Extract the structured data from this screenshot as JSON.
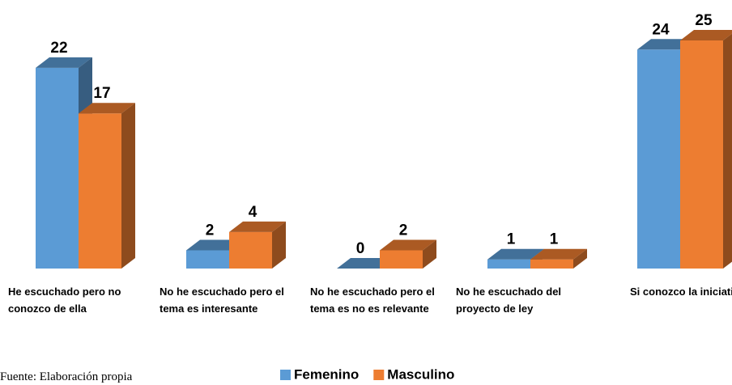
{
  "chart_data": {
    "type": "bar3d",
    "categories": [
      "He escuchado pero no conozco de ella",
      "No he escuchado pero el tema es interesante",
      "No he escuchado pero el tema es no es relevante",
      "No he escuchado del proyecto de ley",
      "Si conozco la iniciativa"
    ],
    "series": [
      {
        "name": "Femenino",
        "color": "#5b9bd5",
        "values": [
          22,
          2,
          0,
          1,
          24
        ]
      },
      {
        "name": "Masculino",
        "color": "#ed7d31",
        "values": [
          17,
          4,
          2,
          1,
          25
        ]
      }
    ],
    "legend": "bottom",
    "note": "Fuente: Elaboración propia"
  }
}
